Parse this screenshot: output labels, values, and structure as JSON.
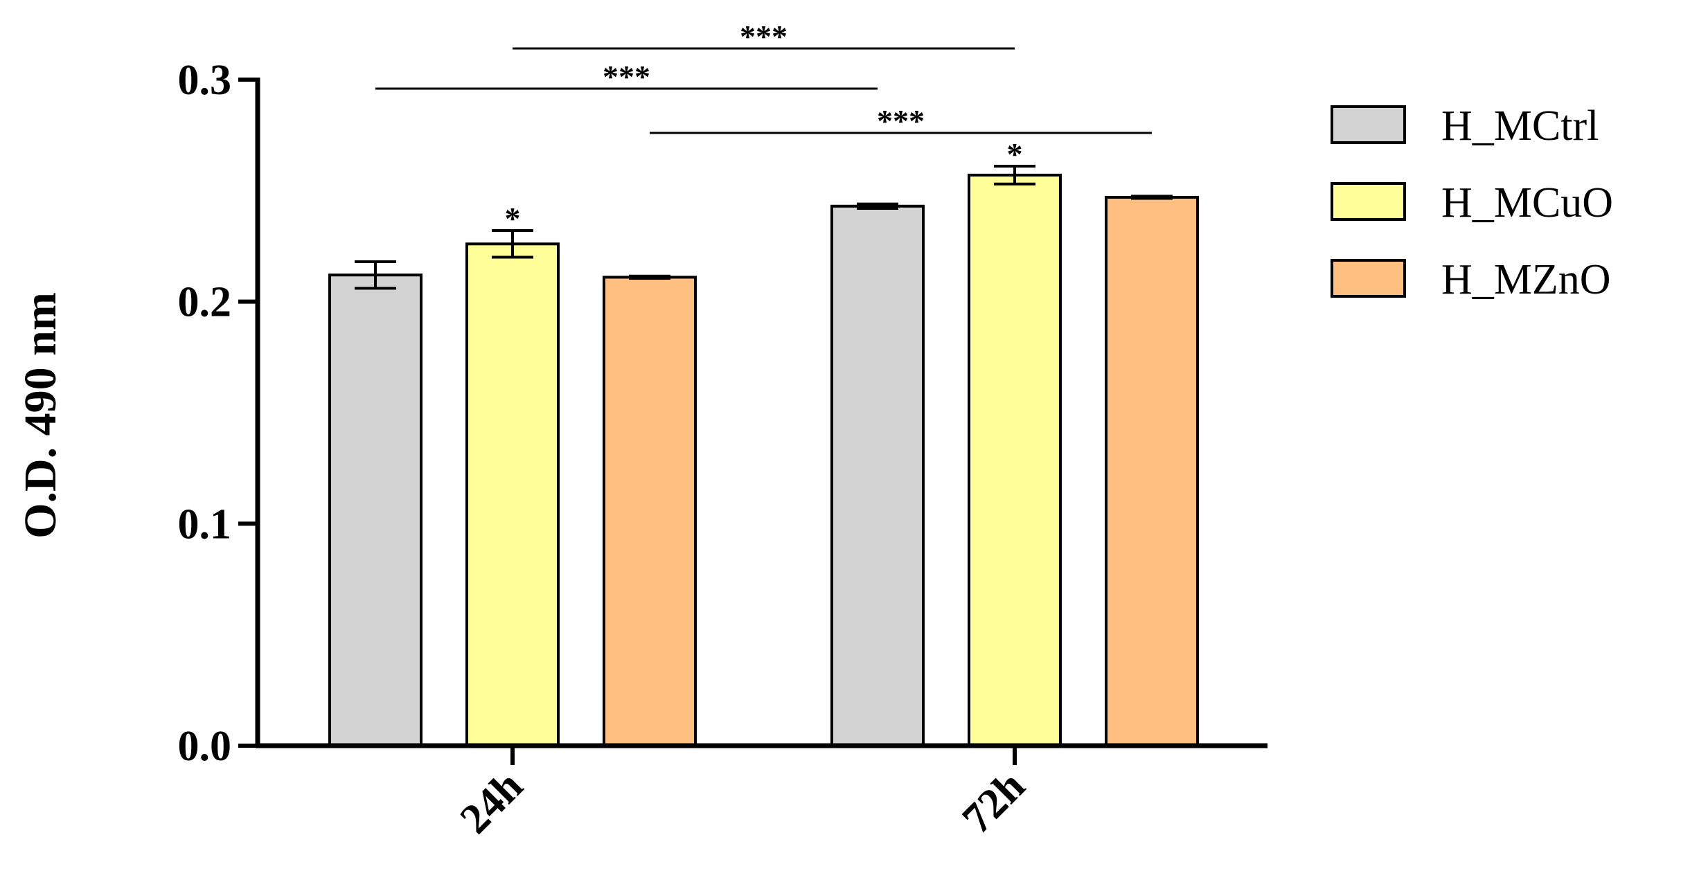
{
  "chart_data": {
    "type": "bar",
    "title": "",
    "xlabel": "",
    "ylabel": "O.D. 490 nm",
    "ylim": [
      0,
      0.3
    ],
    "yticks": [
      "0.0",
      "0.1",
      "0.2",
      "0.3"
    ],
    "grid": false,
    "legend_position": "right",
    "categories": [
      "24h",
      "72h"
    ],
    "series": [
      {
        "name": "H_MCtrl",
        "color": "#d3d3d3",
        "values": [
          0.212,
          0.243
        ],
        "errors": [
          0.006,
          0.001
        ],
        "marks": [
          "",
          ""
        ]
      },
      {
        "name": "H_MCuO",
        "color": "#ffff99",
        "values": [
          0.226,
          0.257
        ],
        "errors": [
          0.006,
          0.004
        ],
        "marks": [
          "*",
          "*"
        ]
      },
      {
        "name": "H_MZnO",
        "color": "#ffbf80",
        "values": [
          0.211,
          0.247
        ],
        "errors": [
          0.0005,
          0.0005
        ],
        "marks": [
          "",
          ""
        ]
      }
    ],
    "significance": [
      {
        "from": [
          0,
          1
        ],
        "to": [
          1,
          1
        ],
        "label": "***"
      },
      {
        "from": [
          0,
          0
        ],
        "to": [
          1,
          0
        ],
        "label": "***"
      },
      {
        "from": [
          0,
          2
        ],
        "to": [
          1,
          2
        ],
        "label": "***"
      }
    ]
  }
}
